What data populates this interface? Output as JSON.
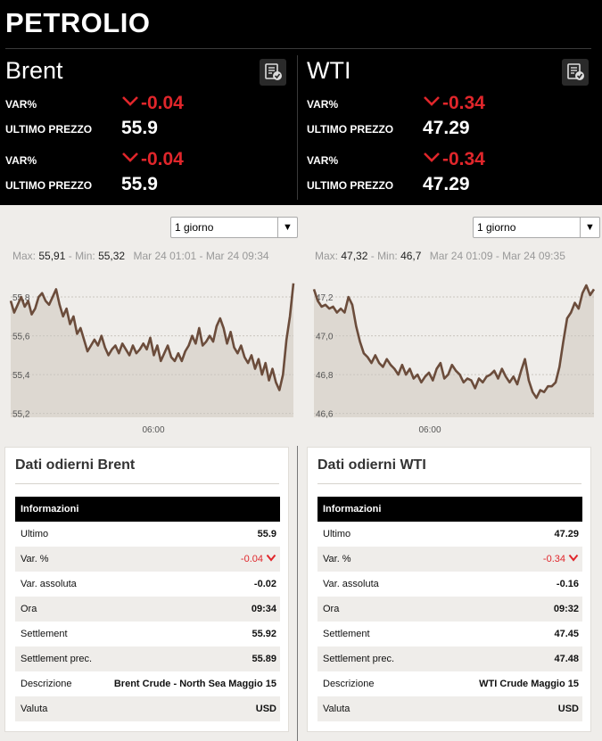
{
  "page_title": "PETROLIO",
  "markets": [
    {
      "name": "Brent",
      "var_label": "VAR%",
      "var_value": "-0.04",
      "price_label": "ULTIMO PREZZO",
      "price_value": "55.9",
      "var_label_2": "VAR%",
      "var_value_2": "-0.04",
      "price_label_2": "ULTIMO PREZZO",
      "price_value_2": "55.9"
    },
    {
      "name": "WTI",
      "var_label": "VAR%",
      "var_value": "-0.34",
      "price_label": "ULTIMO PREZZO",
      "price_value": "47.29",
      "var_label_2": "VAR%",
      "var_value_2": "-0.34",
      "price_label_2": "ULTIMO PREZZO",
      "price_value_2": "47.29"
    }
  ],
  "charts": [
    {
      "period": "1 giorno",
      "max_label": "Max:",
      "max": "55,91",
      "min_label": "- Min:",
      "min": "55,32",
      "range": "Mar 24 01:01 - Mar 24 09:34"
    },
    {
      "period": "1 giorno",
      "max_label": "Max:",
      "max": "47,32",
      "min_label": "- Min:",
      "min": "46,7",
      "range": "Mar 24 01:09 - Mar 24 09:35"
    }
  ],
  "chart_data": [
    {
      "type": "area",
      "title": "",
      "xlabel": "",
      "ylabel": "",
      "y_ticks": [
        "55,2",
        "55,4",
        "55,6",
        "55,8"
      ],
      "x_ticks": [
        "06:00"
      ],
      "ylim": [
        55.18,
        55.86
      ],
      "grid": true,
      "series": [
        {
          "values": [
            55.78,
            55.72,
            55.76,
            55.8,
            55.75,
            55.78,
            55.71,
            55.74,
            55.8,
            55.82,
            55.78,
            55.76,
            55.8,
            55.84,
            55.76,
            55.7,
            55.74,
            55.66,
            55.7,
            55.61,
            55.64,
            55.58,
            55.52,
            55.55,
            55.58,
            55.55,
            55.6,
            55.54,
            55.5,
            55.53,
            55.55,
            55.51,
            55.56,
            55.53,
            55.5,
            55.55,
            55.51,
            55.53,
            55.56,
            55.53,
            55.59,
            55.5,
            55.55,
            55.47,
            55.51,
            55.55,
            55.49,
            55.47,
            55.51,
            55.47,
            55.52,
            55.55,
            55.6,
            55.56,
            55.64,
            55.55,
            55.57,
            55.6,
            55.57,
            55.65,
            55.69,
            55.64,
            55.56,
            55.62,
            55.54,
            55.51,
            55.55,
            55.49,
            55.46,
            55.5,
            55.43,
            55.48,
            55.4,
            55.46,
            55.37,
            55.43,
            55.36,
            55.32,
            55.4,
            55.58,
            55.7,
            55.87
          ]
        }
      ]
    },
    {
      "type": "area",
      "title": "",
      "xlabel": "",
      "ylabel": "",
      "y_ticks": [
        "46,6",
        "46,8",
        "47,0",
        "47,2"
      ],
      "x_ticks": [
        "06:00"
      ],
      "ylim": [
        46.58,
        47.26
      ],
      "grid": true,
      "series": [
        {
          "values": [
            47.24,
            47.18,
            47.15,
            47.16,
            47.14,
            47.15,
            47.12,
            47.14,
            47.12,
            47.2,
            47.16,
            47.05,
            46.97,
            46.91,
            46.89,
            46.86,
            46.9,
            46.86,
            46.84,
            46.88,
            46.85,
            46.83,
            46.8,
            46.85,
            46.8,
            46.83,
            46.78,
            46.8,
            46.76,
            46.79,
            46.81,
            46.77,
            46.83,
            46.86,
            46.78,
            46.8,
            46.85,
            46.82,
            46.8,
            46.76,
            46.78,
            46.77,
            46.73,
            46.78,
            46.76,
            46.79,
            46.8,
            46.82,
            46.78,
            46.83,
            46.79,
            46.76,
            46.79,
            46.75,
            46.82,
            46.88,
            46.77,
            46.71,
            46.68,
            46.72,
            46.71,
            46.74,
            46.74,
            46.76,
            46.84,
            46.97,
            47.09,
            47.12,
            47.17,
            47.14,
            47.22,
            47.26,
            47.21,
            47.24
          ]
        }
      ]
    }
  ],
  "tables": [
    {
      "title": "Dati odierni Brent",
      "header": "Informazioni",
      "rows": [
        {
          "k": "Ultimo",
          "v": "55.9"
        },
        {
          "k": "Var. %",
          "v": "-0.04"
        },
        {
          "k": "Var. assoluta",
          "v": "-0.02"
        },
        {
          "k": "Ora",
          "v": "09:34"
        },
        {
          "k": "Settlement",
          "v": "55.92"
        },
        {
          "k": "Settlement prec.",
          "v": "55.89"
        },
        {
          "k": "Descrizione",
          "v": "Brent Crude - North Sea Maggio 15"
        },
        {
          "k": "Valuta",
          "v": "USD"
        }
      ]
    },
    {
      "title": "Dati odierni WTI",
      "header": "Informazioni",
      "rows": [
        {
          "k": "Ultimo",
          "v": "47.29"
        },
        {
          "k": "Var. %",
          "v": "-0.34"
        },
        {
          "k": "Var. assoluta",
          "v": "-0.16"
        },
        {
          "k": "Ora",
          "v": "09:32"
        },
        {
          "k": "Settlement",
          "v": "47.45"
        },
        {
          "k": "Settlement prec.",
          "v": "47.48"
        },
        {
          "k": "Descrizione",
          "v": "WTI Crude Maggio 15"
        },
        {
          "k": "Valuta",
          "v": "USD"
        }
      ]
    }
  ],
  "colors": {
    "negative": "#e0262b",
    "line": "#6b4c3b",
    "area": "#ddd8d1",
    "header_bg": "#000000"
  },
  "icons": {
    "chart_tool": "chart-settings-icon",
    "down_arrow": "chevron-down-icon",
    "dropdown": "dropdown-arrow-icon"
  }
}
